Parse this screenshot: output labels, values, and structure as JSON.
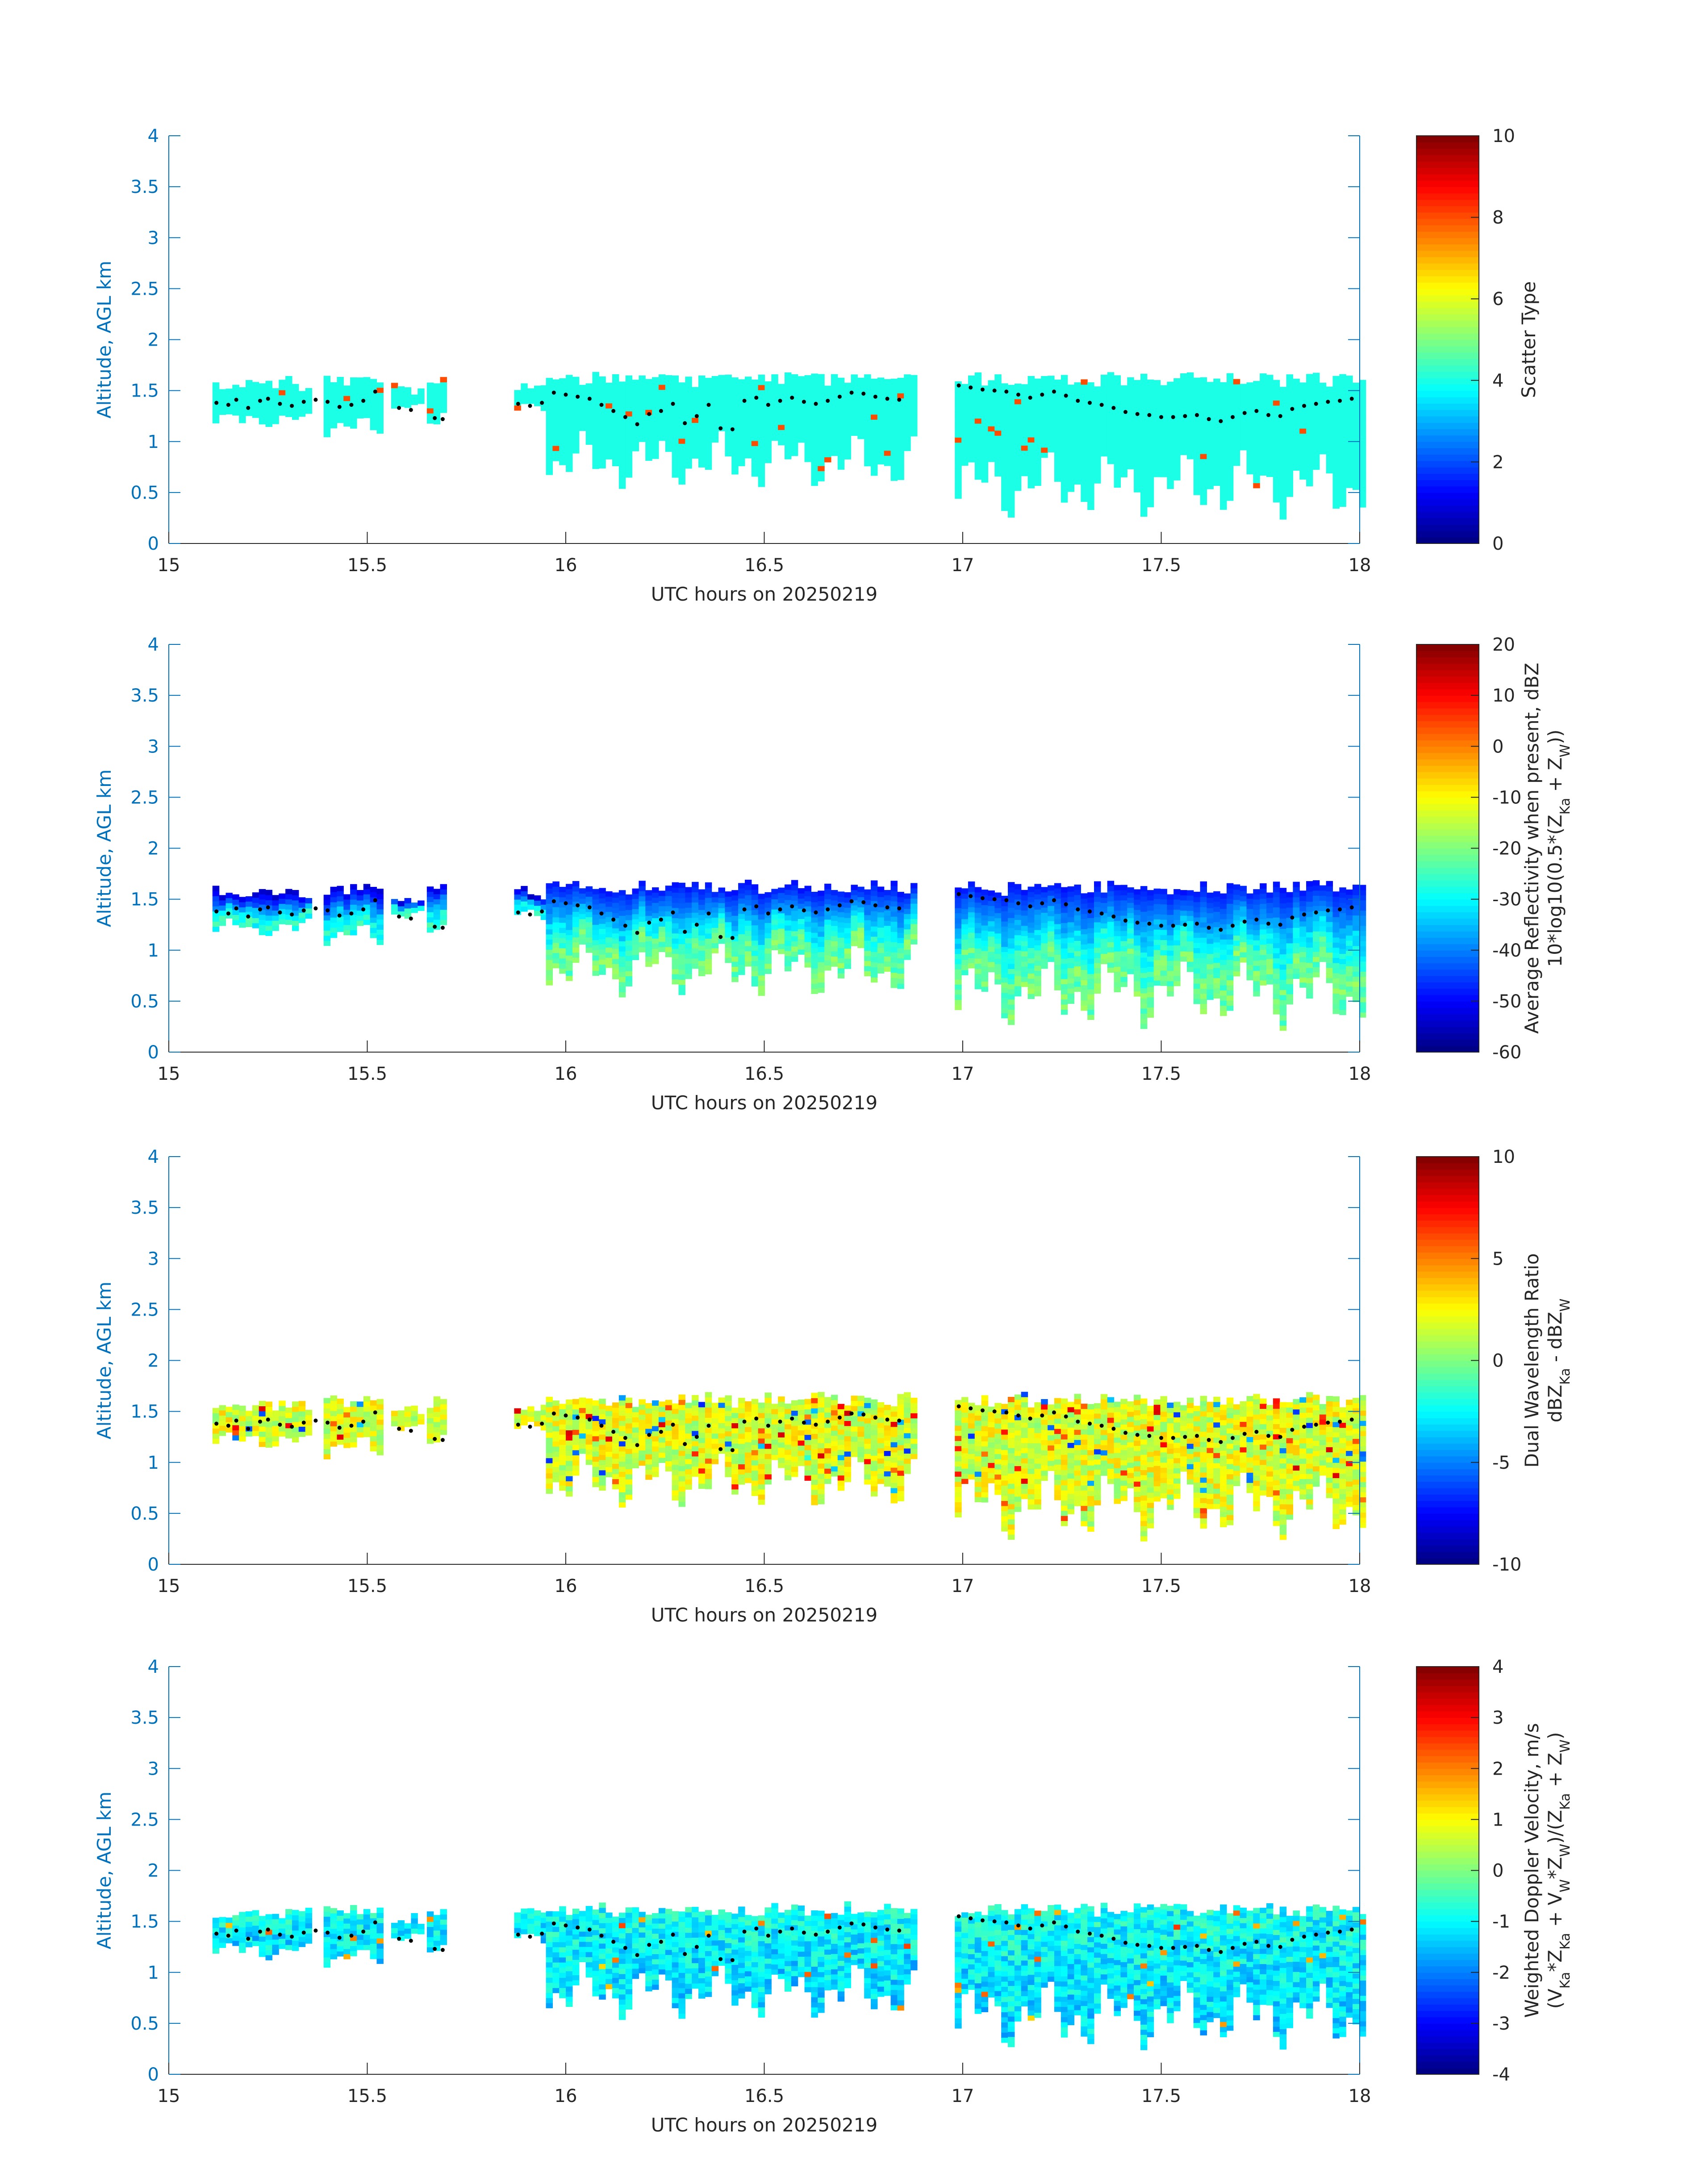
{
  "figure": {
    "panels": [
      {
        "id": "scatter_type",
        "colorbar_label_lines": [
          "Scatter Type"
        ],
        "clim": [
          0,
          10
        ],
        "cticks": [
          0,
          2,
          4,
          6,
          8,
          10
        ]
      },
      {
        "id": "reflectivity",
        "colorbar_label_lines": [
          "Average Reflectivity when present, dBZ",
          "10*log10(0.5*(Z_Ka + Z_W))"
        ],
        "clim": [
          -60,
          20
        ],
        "cticks": [
          -60,
          -50,
          -40,
          -30,
          -20,
          -10,
          0,
          10,
          20
        ]
      },
      {
        "id": "dwr",
        "colorbar_label_lines": [
          "Dual Wavelength Ratio",
          "dBZ_Ka - dBZ_W"
        ],
        "clim": [
          -10,
          10
        ],
        "cticks": [
          -10,
          -5,
          0,
          5,
          10
        ]
      },
      {
        "id": "doppler",
        "colorbar_label_lines": [
          "Weighted Doppler Velocity, m/s",
          "(V_Ka*Z_Ka + V_W*Z_W)/(Z_Ka + Z_W)"
        ],
        "clim": [
          -4,
          4
        ],
        "cticks": [
          -4,
          -3,
          -2,
          -1,
          0,
          1,
          2,
          3,
          4
        ]
      }
    ]
  },
  "chart_data": {
    "type": "heatmap",
    "xlabel": "UTC hours on 20250219",
    "ylabel": "Altitude, AGL km",
    "xlim": [
      15,
      18
    ],
    "ylim": [
      0,
      4
    ],
    "xticks": [
      15,
      15.5,
      16,
      16.5,
      17,
      17.5,
      18
    ],
    "yticks": [
      0,
      0.5,
      1,
      1.5,
      2,
      2.5,
      3,
      3.5,
      4
    ],
    "colormap": "jet",
    "cloud_segments": [
      {
        "x": [
          15.11,
          15.36
        ],
        "base": 1.1,
        "top": 1.6
      },
      {
        "x": [
          15.39,
          15.53
        ],
        "base": 1.0,
        "top": 1.65
      },
      {
        "x": [
          15.56,
          15.64
        ],
        "base": 1.25,
        "top": 1.55
      },
      {
        "x": [
          15.65,
          15.7
        ],
        "base": 1.15,
        "top": 1.65
      },
      {
        "x": [
          15.87,
          15.94
        ],
        "base": 1.25,
        "top": 1.6
      },
      {
        "x": [
          15.95,
          16.87
        ],
        "base": 0.5,
        "top": 1.65
      },
      {
        "x": [
          16.98,
          18.0
        ],
        "base": 0.2,
        "top": 1.65
      }
    ],
    "cloud_base_points": [
      [
        15.12,
        1.38
      ],
      [
        15.15,
        1.36
      ],
      [
        15.17,
        1.41
      ],
      [
        15.2,
        1.33
      ],
      [
        15.23,
        1.4
      ],
      [
        15.25,
        1.42
      ],
      [
        15.28,
        1.37
      ],
      [
        15.31,
        1.35
      ],
      [
        15.34,
        1.39
      ],
      [
        15.37,
        1.41
      ],
      [
        15.4,
        1.39
      ],
      [
        15.43,
        1.34
      ],
      [
        15.46,
        1.36
      ],
      [
        15.49,
        1.4
      ],
      [
        15.52,
        1.49
      ],
      [
        15.58,
        1.33
      ],
      [
        15.61,
        1.31
      ],
      [
        15.67,
        1.23
      ],
      [
        15.69,
        1.22
      ],
      [
        15.88,
        1.37
      ],
      [
        15.91,
        1.35
      ],
      [
        15.94,
        1.38
      ],
      [
        15.97,
        1.48
      ],
      [
        16.0,
        1.46
      ],
      [
        16.03,
        1.44
      ],
      [
        16.06,
        1.42
      ],
      [
        16.09,
        1.36
      ],
      [
        16.12,
        1.3
      ],
      [
        16.15,
        1.24
      ],
      [
        16.18,
        1.17
      ],
      [
        16.21,
        1.27
      ],
      [
        16.24,
        1.3
      ],
      [
        16.27,
        1.37
      ],
      [
        16.3,
        1.18
      ],
      [
        16.33,
        1.25
      ],
      [
        16.36,
        1.36
      ],
      [
        16.39,
        1.13
      ],
      [
        16.42,
        1.12
      ],
      [
        16.45,
        1.4
      ],
      [
        16.48,
        1.43
      ],
      [
        16.51,
        1.36
      ],
      [
        16.54,
        1.4
      ],
      [
        16.57,
        1.43
      ],
      [
        16.6,
        1.39
      ],
      [
        16.63,
        1.37
      ],
      [
        16.66,
        1.4
      ],
      [
        16.69,
        1.44
      ],
      [
        16.72,
        1.48
      ],
      [
        16.75,
        1.47
      ],
      [
        16.78,
        1.44
      ],
      [
        16.81,
        1.42
      ],
      [
        16.84,
        1.41
      ],
      [
        16.99,
        1.55
      ],
      [
        17.02,
        1.53
      ],
      [
        17.05,
        1.51
      ],
      [
        17.08,
        1.5
      ],
      [
        17.11,
        1.49
      ],
      [
        17.14,
        1.46
      ],
      [
        17.17,
        1.43
      ],
      [
        17.2,
        1.46
      ],
      [
        17.23,
        1.49
      ],
      [
        17.26,
        1.45
      ],
      [
        17.29,
        1.4
      ],
      [
        17.32,
        1.38
      ],
      [
        17.35,
        1.36
      ],
      [
        17.38,
        1.33
      ],
      [
        17.41,
        1.29
      ],
      [
        17.44,
        1.27
      ],
      [
        17.47,
        1.26
      ],
      [
        17.5,
        1.24
      ],
      [
        17.53,
        1.24
      ],
      [
        17.56,
        1.25
      ],
      [
        17.59,
        1.26
      ],
      [
        17.62,
        1.22
      ],
      [
        17.65,
        1.2
      ],
      [
        17.68,
        1.24
      ],
      [
        17.71,
        1.28
      ],
      [
        17.74,
        1.3
      ],
      [
        17.77,
        1.26
      ],
      [
        17.8,
        1.25
      ],
      [
        17.83,
        1.32
      ],
      [
        17.86,
        1.35
      ],
      [
        17.89,
        1.37
      ],
      [
        17.92,
        1.39
      ],
      [
        17.95,
        1.4
      ],
      [
        17.98,
        1.42
      ]
    ]
  }
}
